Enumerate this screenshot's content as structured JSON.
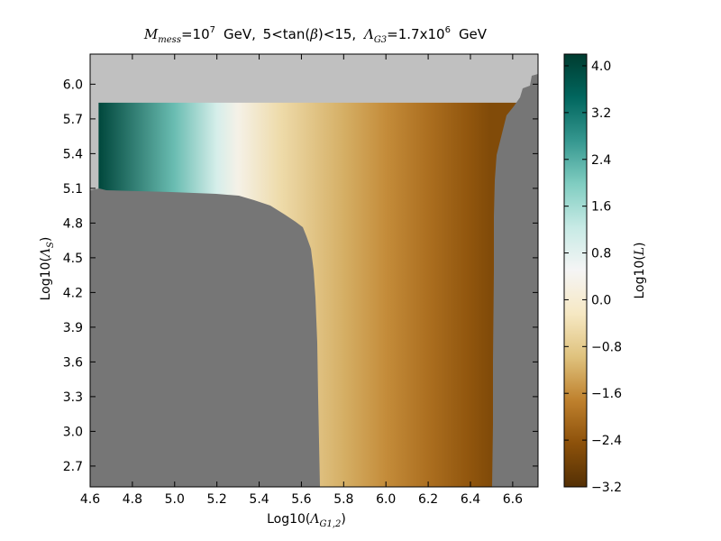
{
  "chart_data": {
    "type": "heatmap",
    "title": {
      "m_symbol": "M",
      "m_sub": "mess",
      "m_eq": "=10",
      "m_exp": "7",
      "gev1": "GeV,",
      "tanb_lower": "5",
      "tanb_lt1": "<",
      "tanb_text": "tan(",
      "tanb_beta": "β",
      "tanb_close": ")",
      "tanb_lt2": "<",
      "tanb_upper": "15,",
      "lam_symbol": "Λ",
      "lam_sub": "G3",
      "lam_eq": "=1.7x10",
      "lam_exp": "6",
      "gev2": "GeV"
    },
    "xlabel": {
      "prefix": "Log10(",
      "symbol": "Λ",
      "sub": "G1,2",
      "suffix": ")"
    },
    "ylabel": {
      "prefix": "Log10(",
      "symbol": "Λ",
      "sub": "S",
      "suffix": ")"
    },
    "colorbar_label": {
      "prefix": "Log10(",
      "symbol": "L",
      "suffix": ")"
    },
    "xlim": [
      4.6,
      6.72
    ],
    "ylim": [
      2.52,
      6.26
    ],
    "xticks": [
      "4.6",
      "4.8",
      "5.0",
      "5.2",
      "5.4",
      "5.6",
      "5.8",
      "6.0",
      "6.2",
      "6.4",
      "6.6"
    ],
    "yticks": [
      "2.7",
      "3.0",
      "3.3",
      "3.6",
      "3.9",
      "4.2",
      "4.5",
      "4.8",
      "5.1",
      "5.4",
      "5.7",
      "6.0"
    ],
    "colorbar_ticks": [
      "4.0",
      "3.2",
      "2.4",
      "1.6",
      "0.8",
      "0.0",
      "−0.8",
      "−1.6",
      "−2.4",
      "−3.2"
    ],
    "color_range": [
      -3.2,
      4.2
    ],
    "colormap": "BrBG",
    "colormap_stops": [
      "#543005",
      "#8c510a",
      "#bf812d",
      "#dfc27d",
      "#f6e8c3",
      "#f5f5f5",
      "#c7eae5",
      "#80cdc1",
      "#35978f",
      "#01665e",
      "#003c30"
    ],
    "excluded_colors": {
      "upper_region": "#c0c0c0",
      "lower_region": "#767676"
    },
    "data_region": {
      "top_y": 5.84,
      "left_x": 4.64
    },
    "trend_x": [
      4.64,
      5.0,
      5.2,
      5.3,
      5.5,
      5.8,
      6.0,
      6.2,
      6.4,
      6.49
    ],
    "trend_values": [
      4.0,
      2.2,
      1.0,
      0.3,
      -0.5,
      -1.2,
      -1.6,
      -2.0,
      -2.4,
      -2.6
    ]
  }
}
